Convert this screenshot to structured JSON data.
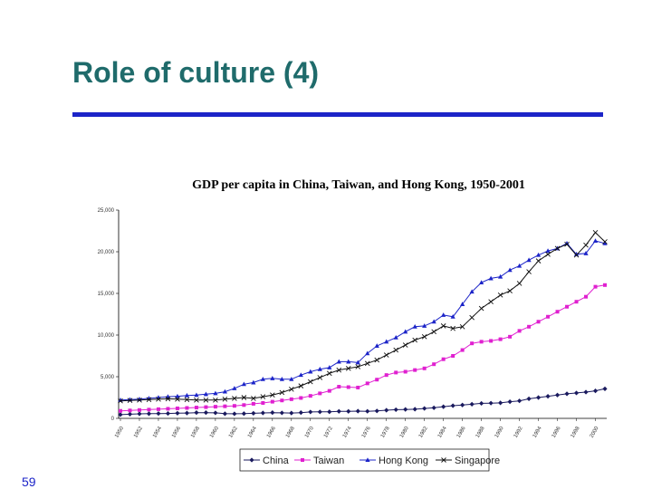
{
  "slide": {
    "title": "Role of culture (4)",
    "page_number": "59"
  },
  "chart_data": {
    "type": "line",
    "title": "GDP per capita in China, Taiwan, and Hong Kong, 1950-2001",
    "xlabel": "",
    "ylabel": "",
    "ylim": [
      0,
      25000
    ],
    "yticks": [
      0,
      5000,
      10000,
      15000,
      20000,
      25000
    ],
    "ytick_labels": [
      "0",
      "5,000",
      "10,000",
      "15,000",
      "20,000",
      "25,000"
    ],
    "x": [
      1950,
      1951,
      1952,
      1953,
      1954,
      1955,
      1956,
      1957,
      1958,
      1959,
      1960,
      1961,
      1962,
      1963,
      1964,
      1965,
      1966,
      1967,
      1968,
      1969,
      1970,
      1971,
      1972,
      1973,
      1974,
      1975,
      1976,
      1977,
      1978,
      1979,
      1980,
      1981,
      1982,
      1983,
      1984,
      1985,
      1986,
      1987,
      1988,
      1989,
      1990,
      1991,
      1992,
      1993,
      1994,
      1995,
      1996,
      1997,
      1998,
      1999,
      2000,
      2001
    ],
    "xtick_labels": [
      "1950",
      "1952",
      "1954",
      "1956",
      "1958",
      "1960",
      "1962",
      "1964",
      "1966",
      "1968",
      "1970",
      "1972",
      "1974",
      "1976",
      "1978",
      "1980",
      "1982",
      "1984",
      "1986",
      "1988",
      "1990",
      "1992",
      "1994",
      "1996",
      "1998",
      "2000"
    ],
    "legend_position": "bottom",
    "series": [
      {
        "name": "China",
        "color": "#1a1a5e",
        "marker": "diamond",
        "values": [
          450,
          500,
          540,
          560,
          580,
          590,
          620,
          640,
          690,
          690,
          660,
          560,
          550,
          570,
          610,
          650,
          690,
          660,
          640,
          690,
          770,
          780,
          790,
          840,
          840,
          870,
          850,
          890,
          980,
          1040,
          1070,
          1100,
          1190,
          1270,
          1400,
          1520,
          1600,
          1700,
          1800,
          1830,
          1860,
          2000,
          2100,
          2350,
          2500,
          2650,
          2800,
          2950,
          3050,
          3150,
          3300,
          3550
        ]
      },
      {
        "name": "Taiwan",
        "color": "#e020d0",
        "marker": "square",
        "values": [
          900,
          950,
          1000,
          1050,
          1100,
          1150,
          1200,
          1250,
          1300,
          1350,
          1400,
          1450,
          1500,
          1600,
          1750,
          1850,
          2000,
          2150,
          2300,
          2450,
          2700,
          3000,
          3300,
          3800,
          3750,
          3700,
          4200,
          4650,
          5200,
          5500,
          5600,
          5800,
          6000,
          6500,
          7100,
          7500,
          8200,
          9000,
          9200,
          9300,
          9500,
          9800,
          10500,
          11000,
          11600,
          12200,
          12800,
          13400,
          14000,
          14600,
          15800,
          16000
        ]
      },
      {
        "name": "Hong Kong",
        "color": "#1c24c8",
        "marker": "triangle",
        "values": [
          2200,
          2250,
          2300,
          2400,
          2500,
          2600,
          2650,
          2750,
          2800,
          2900,
          3000,
          3200,
          3600,
          4100,
          4300,
          4700,
          4800,
          4700,
          4700,
          5200,
          5600,
          5900,
          6100,
          6800,
          6800,
          6700,
          7800,
          8700,
          9200,
          9700,
          10400,
          11000,
          11100,
          11600,
          12400,
          12200,
          13700,
          15200,
          16300,
          16800,
          17000,
          17800,
          18300,
          19000,
          19600,
          20100,
          20400,
          21000,
          19700,
          19800,
          21300,
          21000
        ]
      },
      {
        "name": "Singapore",
        "color": "#111111",
        "marker": "x",
        "values": [
          2100,
          2150,
          2200,
          2250,
          2300,
          2350,
          2300,
          2250,
          2200,
          2200,
          2200,
          2300,
          2400,
          2500,
          2400,
          2600,
          2800,
          3100,
          3500,
          3900,
          4400,
          4900,
          5400,
          5800,
          6000,
          6200,
          6600,
          7000,
          7600,
          8200,
          8800,
          9400,
          9800,
          10400,
          11100,
          10800,
          11000,
          12100,
          13200,
          14000,
          14800,
          15300,
          16200,
          17600,
          18900,
          19700,
          20400,
          20900,
          19600,
          20800,
          22300,
          21200
        ]
      }
    ]
  }
}
